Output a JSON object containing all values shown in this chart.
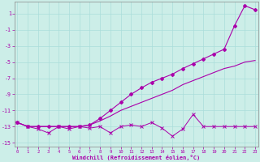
{
  "xlabel": "Windchill (Refroidissement éolien,°C)",
  "bg_color": "#cceee8",
  "grid_color": "#aaddda",
  "line_color": "#aa00aa",
  "x": [
    0,
    1,
    2,
    3,
    4,
    5,
    6,
    7,
    8,
    9,
    10,
    11,
    12,
    13,
    14,
    15,
    16,
    17,
    18,
    19,
    20,
    21,
    22,
    23
  ],
  "y_flat": [
    -12.5,
    -13.0,
    -13.3,
    -13.8,
    -13.0,
    -13.3,
    -13.0,
    -13.2,
    -13.0,
    -13.8,
    -13.0,
    -12.8,
    -13.0,
    -12.5,
    -13.2,
    -14.2,
    -13.3,
    -11.5,
    -13.0,
    -13.0,
    -13.0,
    -13.0,
    -13.0,
    -13.0
  ],
  "y_lower_trend": [
    -12.5,
    -13.0,
    -13.0,
    -13.0,
    -13.0,
    -13.0,
    -13.0,
    -12.8,
    -12.3,
    -11.7,
    -11.0,
    -10.5,
    -10.0,
    -9.5,
    -9.0,
    -8.5,
    -7.8,
    -7.3,
    -6.8,
    -6.3,
    -5.8,
    -5.5,
    -5.0,
    -4.8
  ],
  "y_upper_trend": [
    -12.5,
    -13.0,
    -13.0,
    -13.0,
    -13.0,
    -13.0,
    -13.0,
    -12.8,
    -12.0,
    -11.0,
    -10.0,
    -9.0,
    -8.2,
    -7.5,
    -7.0,
    -6.5,
    -5.8,
    -5.2,
    -4.6,
    -4.0,
    -3.4,
    -0.5,
    2.0,
    1.5
  ],
  "ylim": [
    -15.5,
    2.5
  ],
  "xlim": [
    -0.3,
    23.3
  ],
  "yticks": [
    1,
    -1,
    -3,
    -5,
    -7,
    -9,
    -11,
    -13,
    -15
  ],
  "xticks": [
    0,
    1,
    2,
    3,
    4,
    5,
    6,
    7,
    8,
    9,
    10,
    11,
    12,
    13,
    14,
    15,
    16,
    17,
    18,
    19,
    20,
    21,
    22,
    23
  ]
}
